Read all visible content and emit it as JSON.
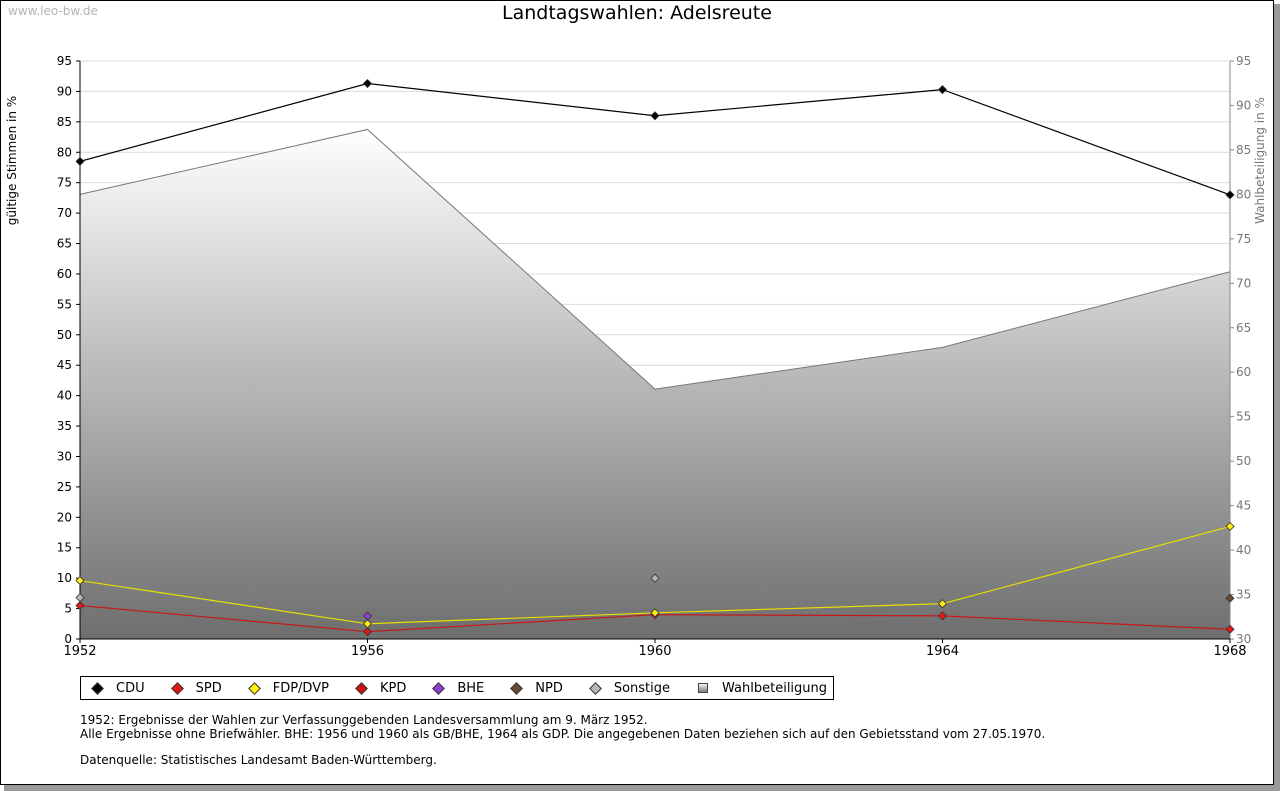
{
  "watermark": "www.leo-bw.de",
  "title": "Landtagswahlen: Adelsreute",
  "chart_data": {
    "type": "line",
    "title": "Landtagswahlen: Adelsreute",
    "xlabel": "",
    "ylabel": "gültige Stimmen in %",
    "y2label": "Wahlbeteiligung in %",
    "ylim": [
      0,
      95
    ],
    "y2lim": [
      30,
      95
    ],
    "yticks": [
      0,
      5,
      10,
      15,
      20,
      25,
      30,
      35,
      40,
      45,
      50,
      55,
      60,
      65,
      70,
      75,
      80,
      85,
      90,
      95
    ],
    "y2ticks": [
      30,
      35,
      40,
      45,
      50,
      55,
      60,
      65,
      70,
      75,
      80,
      85,
      90,
      95
    ],
    "categories": [
      "1952",
      "1956",
      "1960",
      "1964",
      "1968"
    ],
    "grid": true,
    "series": [
      {
        "name": "CDU",
        "color": "#000000",
        "line": "#000000",
        "values": [
          78.5,
          91.3,
          86.0,
          90.3,
          73.0
        ]
      },
      {
        "name": "SPD",
        "color": "#e01818",
        "line": "#c81818",
        "values": [
          5.5,
          1.2,
          4.0,
          3.8,
          1.6
        ]
      },
      {
        "name": "FDP/DVP",
        "color": "#ffee10",
        "line": "#e8e000",
        "values": [
          9.6,
          2.5,
          4.3,
          5.8,
          18.5
        ]
      },
      {
        "name": "KPD",
        "color": "#cc1010",
        "line": "#cc1010",
        "values": [
          null,
          null,
          null,
          null,
          null
        ]
      },
      {
        "name": "BHE",
        "color": "#9040d0",
        "line": "#9040d0",
        "values": [
          null,
          3.8,
          null,
          null,
          null
        ]
      },
      {
        "name": "NPD",
        "color": "#6a4a30",
        "line": "#6a4a30",
        "values": [
          null,
          null,
          null,
          null,
          6.7
        ]
      },
      {
        "name": "Sonstige",
        "color": "#b8b8b8",
        "line": "#c4c4c4",
        "values": [
          6.8,
          null,
          10.0,
          null,
          null
        ]
      }
    ],
    "turnout": {
      "name": "Wahlbeteiligung",
      "axis": "right",
      "values": [
        80.0,
        87.3,
        58.1,
        62.8,
        71.3
      ]
    }
  },
  "legend": [
    {
      "label": "CDU",
      "color": "#000000"
    },
    {
      "label": "SPD",
      "color": "#e01818"
    },
    {
      "label": "FDP/DVP",
      "color": "#ffee10"
    },
    {
      "label": "KPD",
      "color": "#cc1010"
    },
    {
      "label": "BHE",
      "color": "#9040d0"
    },
    {
      "label": "NPD",
      "color": "#6a4a30"
    },
    {
      "label": "Sonstige",
      "color": "#b8b8b8"
    },
    {
      "label": "Wahlbeteiligung",
      "color": "#b0b0b0"
    }
  ],
  "notes": {
    "line1": "1952: Ergebnisse der Wahlen zur Verfassunggebenden Landesversammlung am 9. März 1952.",
    "line2": "Alle Ergebnisse ohne Briefwähler. BHE: 1956 und 1960 als GB/BHE, 1964 als GDP. Die angegebenen Daten beziehen sich auf den Gebietsstand vom 27.05.1970.",
    "line3": "Datenquelle: Statistisches Landesamt Baden-Württemberg."
  }
}
